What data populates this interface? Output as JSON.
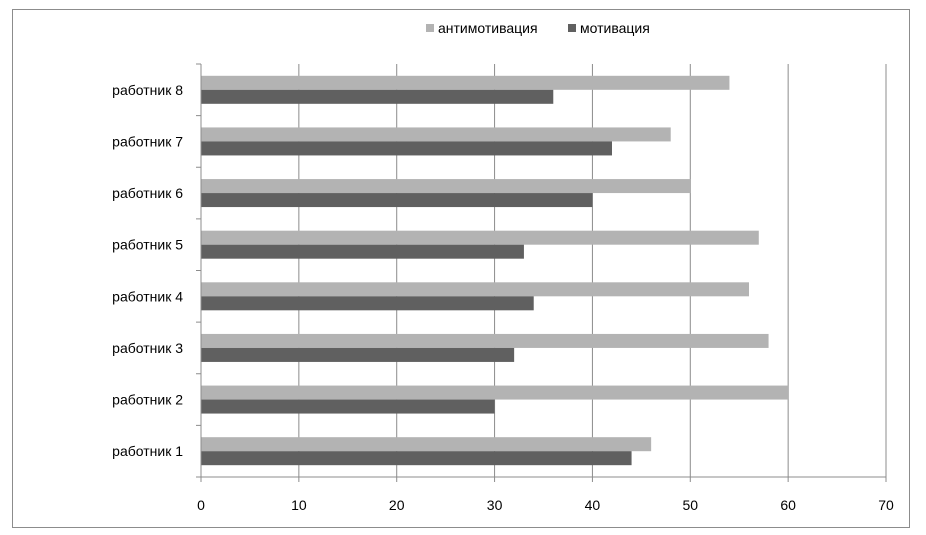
{
  "chart_data": {
    "type": "bar",
    "orientation": "horizontal",
    "categories": [
      "работник 1",
      "работник 2",
      "работник 3",
      "работник 4",
      "работник 5",
      "работник 6",
      "работник 7",
      "работник 8"
    ],
    "series": [
      {
        "name": "антимотивация",
        "color": "#b3b3b3",
        "values": [
          46,
          60,
          58,
          56,
          57,
          50,
          48,
          54
        ]
      },
      {
        "name": "мотивация",
        "color": "#606060",
        "values": [
          44,
          30,
          32,
          34,
          33,
          40,
          42,
          36
        ]
      }
    ],
    "xlim": [
      0,
      70
    ],
    "xticks": [
      0,
      10,
      20,
      30,
      40,
      50,
      60,
      70
    ],
    "grid": "vertical",
    "legend_position": "top-right",
    "title": "",
    "xlabel": "",
    "ylabel": ""
  }
}
